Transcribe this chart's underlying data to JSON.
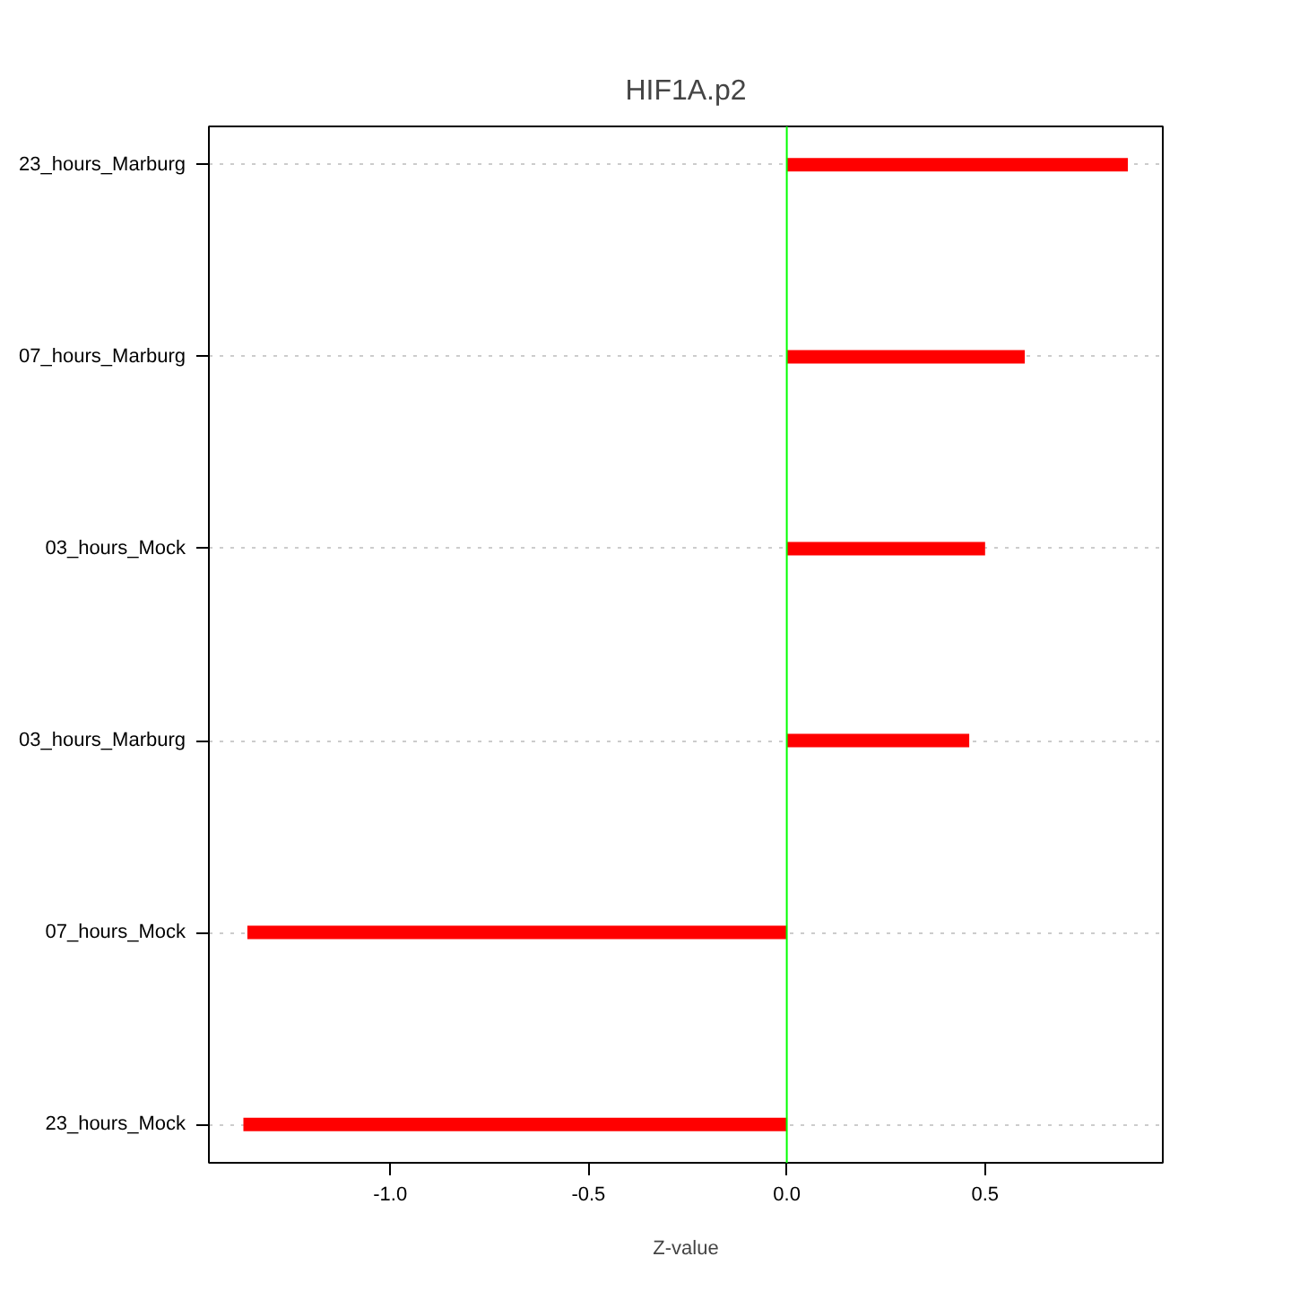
{
  "chart_data": {
    "type": "bar",
    "orientation": "horizontal",
    "title": "HIF1A.p2",
    "xlabel": "Z-value",
    "categories": [
      "23_hours_Marburg",
      "07_hours_Marburg",
      "03_hours_Mock",
      "03_hours_Marburg",
      "07_hours_Mock",
      "23_hours_Mock"
    ],
    "values": [
      0.86,
      0.6,
      0.5,
      0.46,
      -1.36,
      -1.37
    ],
    "color": "#ff0000",
    "xlim": [
      -1.457,
      0.948
    ],
    "xticks": [
      {
        "value": -1,
        "label": "-1.0"
      },
      -0.5,
      {
        "value": 0,
        "label": "0.0"
      },
      0.5
    ],
    "grid": "y",
    "ref_lines": [
      {
        "axis": "x",
        "value": 0,
        "color": "#00ff00"
      }
    ]
  }
}
